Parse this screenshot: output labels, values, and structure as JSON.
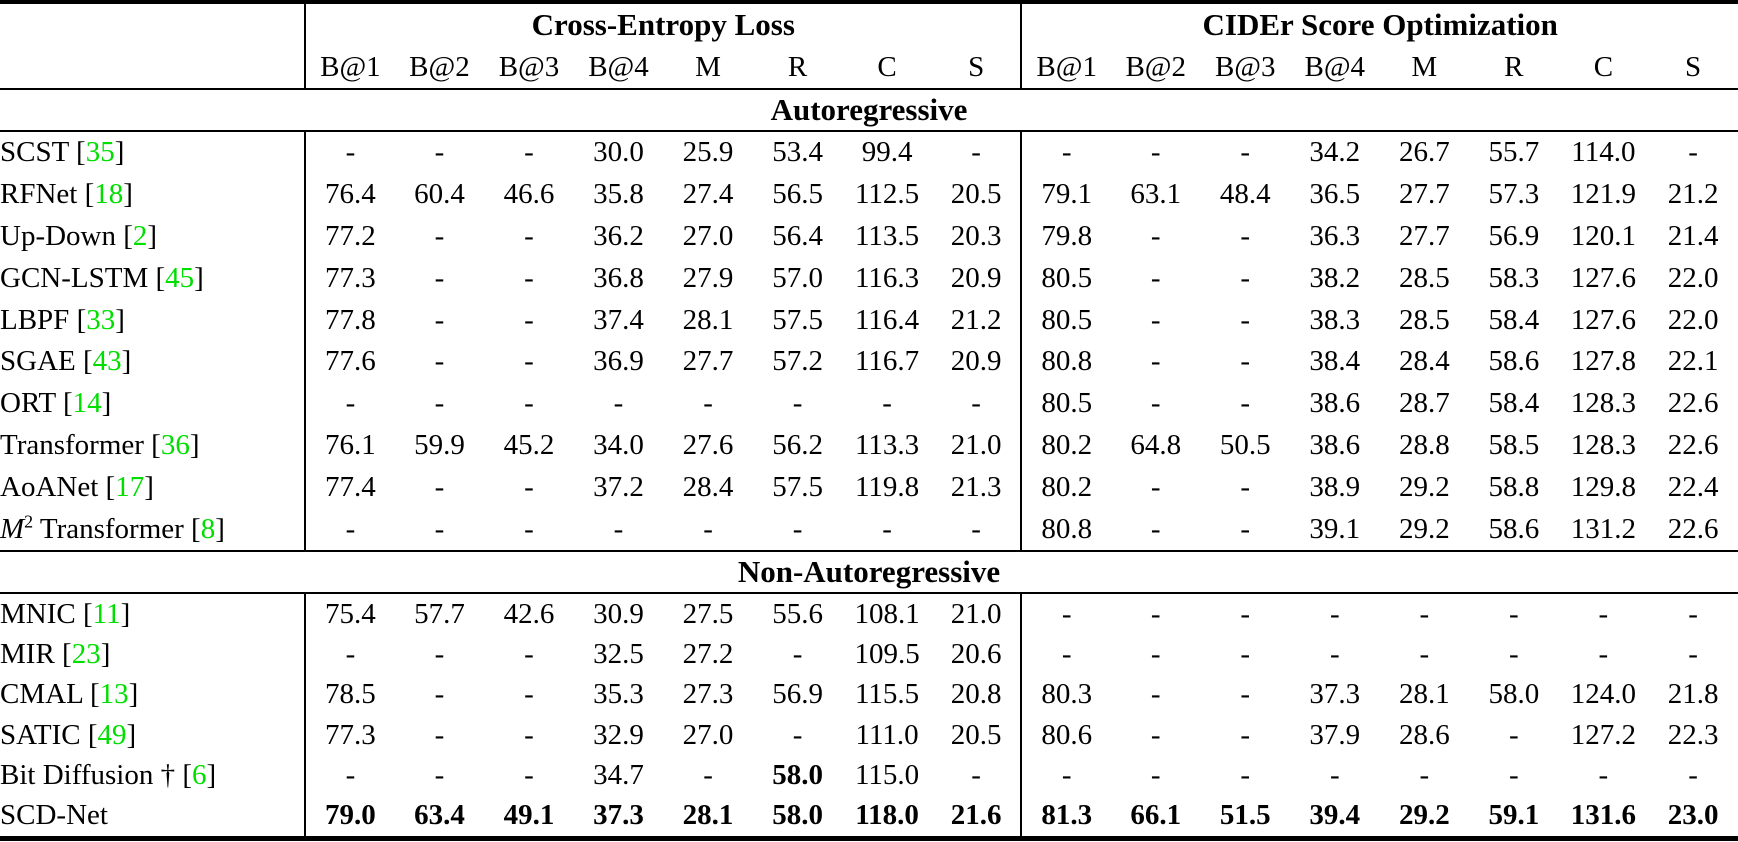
{
  "colors": {
    "citation_green": "#00DE00",
    "text": "#000000",
    "background": "#ffffff"
  },
  "table": {
    "corner_label": "",
    "col_groups": [
      {
        "label": "Cross-Entropy Loss"
      },
      {
        "label": "CIDEr Score Optimization"
      }
    ],
    "metric_headers": [
      "B@1",
      "B@2",
      "B@3",
      "B@4",
      "M",
      "R",
      "C",
      "S"
    ],
    "sections": [
      {
        "label": "Autoregressive",
        "rows": [
          {
            "method": "SCST",
            "cite": "35",
            "ce": [
              "-",
              "-",
              "-",
              "30.0",
              "25.9",
              "53.4",
              "99.4",
              "-"
            ],
            "co": [
              "-",
              "-",
              "-",
              "34.2",
              "26.7",
              "55.7",
              "114.0",
              "-"
            ]
          },
          {
            "method": "RFNet",
            "cite": "18",
            "ce": [
              "76.4",
              "60.4",
              "46.6",
              "35.8",
              "27.4",
              "56.5",
              "112.5",
              "20.5"
            ],
            "co": [
              "79.1",
              "63.1",
              "48.4",
              "36.5",
              "27.7",
              "57.3",
              "121.9",
              "21.2"
            ]
          },
          {
            "method": "Up-Down",
            "cite": "2",
            "ce": [
              "77.2",
              "-",
              "-",
              "36.2",
              "27.0",
              "56.4",
              "113.5",
              "20.3"
            ],
            "co": [
              "79.8",
              "-",
              "-",
              "36.3",
              "27.7",
              "56.9",
              "120.1",
              "21.4"
            ]
          },
          {
            "method": "GCN-LSTM",
            "cite": "45",
            "ce": [
              "77.3",
              "-",
              "-",
              "36.8",
              "27.9",
              "57.0",
              "116.3",
              "20.9"
            ],
            "co": [
              "80.5",
              "-",
              "-",
              "38.2",
              "28.5",
              "58.3",
              "127.6",
              "22.0"
            ]
          },
          {
            "method": "LBPF",
            "cite": "33",
            "ce": [
              "77.8",
              "-",
              "-",
              "37.4",
              "28.1",
              "57.5",
              "116.4",
              "21.2"
            ],
            "co": [
              "80.5",
              "-",
              "-",
              "38.3",
              "28.5",
              "58.4",
              "127.6",
              "22.0"
            ]
          },
          {
            "method": "SGAE",
            "cite": "43",
            "ce": [
              "77.6",
              "-",
              "-",
              "36.9",
              "27.7",
              "57.2",
              "116.7",
              "20.9"
            ],
            "co": [
              "80.8",
              "-",
              "-",
              "38.4",
              "28.4",
              "58.6",
              "127.8",
              "22.1"
            ]
          },
          {
            "method": "ORT",
            "cite": "14",
            "ce": [
              "-",
              "-",
              "-",
              "-",
              "-",
              "-",
              "-",
              "-"
            ],
            "co": [
              "80.5",
              "-",
              "-",
              "38.6",
              "28.7",
              "58.4",
              "128.3",
              "22.6"
            ]
          },
          {
            "method": "Transformer",
            "cite": "36",
            "ce": [
              "76.1",
              "59.9",
              "45.2",
              "34.0",
              "27.6",
              "56.2",
              "113.3",
              "21.0"
            ],
            "co": [
              "80.2",
              "64.8",
              "50.5",
              "38.6",
              "28.8",
              "58.5",
              "128.3",
              "22.6"
            ]
          },
          {
            "method": "AoANet",
            "cite": "17",
            "ce": [
              "77.4",
              "-",
              "-",
              "37.2",
              "28.4",
              "57.5",
              "119.8",
              "21.3"
            ],
            "co": [
              "80.2",
              "-",
              "-",
              "38.9",
              "29.2",
              "58.8",
              "129.8",
              "22.4"
            ]
          },
          {
            "method": "M² Transformer",
            "m2": true,
            "cite": "8",
            "ce": [
              "-",
              "-",
              "-",
              "-",
              "-",
              "-",
              "-",
              "-"
            ],
            "co": [
              "80.8",
              "-",
              "-",
              "39.1",
              "29.2",
              "58.6",
              "131.2",
              "22.6"
            ]
          }
        ]
      },
      {
        "label": "Non-Autoregressive",
        "rows": [
          {
            "method": "MNIC",
            "cite": "11",
            "ce": [
              "75.4",
              "57.7",
              "42.6",
              "30.9",
              "27.5",
              "55.6",
              "108.1",
              "21.0"
            ],
            "co": [
              "-",
              "-",
              "-",
              "-",
              "-",
              "-",
              "-",
              "-"
            ]
          },
          {
            "method": "MIR",
            "cite": "23",
            "ce": [
              "-",
              "-",
              "-",
              "32.5",
              "27.2",
              "-",
              "109.5",
              "20.6"
            ],
            "co": [
              "-",
              "-",
              "-",
              "-",
              "-",
              "-",
              "-",
              "-"
            ]
          },
          {
            "method": "CMAL",
            "cite": "13",
            "ce": [
              "78.5",
              "-",
              "-",
              "35.3",
              "27.3",
              "56.9",
              "115.5",
              "20.8"
            ],
            "co": [
              "80.3",
              "-",
              "-",
              "37.3",
              "28.1",
              "58.0",
              "124.0",
              "21.8"
            ]
          },
          {
            "method": "SATIC",
            "cite": "49",
            "ce": [
              "77.3",
              "-",
              "-",
              "32.9",
              "27.0",
              "-",
              "111.0",
              "20.5"
            ],
            "co": [
              "80.6",
              "-",
              "-",
              "37.9",
              "28.6",
              "-",
              "127.2",
              "22.3"
            ]
          },
          {
            "method": "Bit Diffusion †",
            "cite": "6",
            "ce": [
              "-",
              "-",
              "-",
              "34.7",
              "-",
              "58.0",
              "115.0",
              "-"
            ],
            "ce_bold": [
              5
            ],
            "co": [
              "-",
              "-",
              "-",
              "-",
              "-",
              "-",
              "-",
              "-"
            ]
          },
          {
            "method": "SCD-Net",
            "cite": null,
            "ce": [
              "79.0",
              "63.4",
              "49.1",
              "37.3",
              "28.1",
              "58.0",
              "118.0",
              "21.6"
            ],
            "ce_bold": [
              0,
              1,
              2,
              3,
              4,
              5,
              6,
              7
            ],
            "co": [
              "81.3",
              "66.1",
              "51.5",
              "39.4",
              "29.2",
              "59.1",
              "131.6",
              "23.0"
            ],
            "co_bold": [
              0,
              1,
              2,
              3,
              4,
              5,
              6,
              7
            ]
          }
        ]
      }
    ]
  }
}
